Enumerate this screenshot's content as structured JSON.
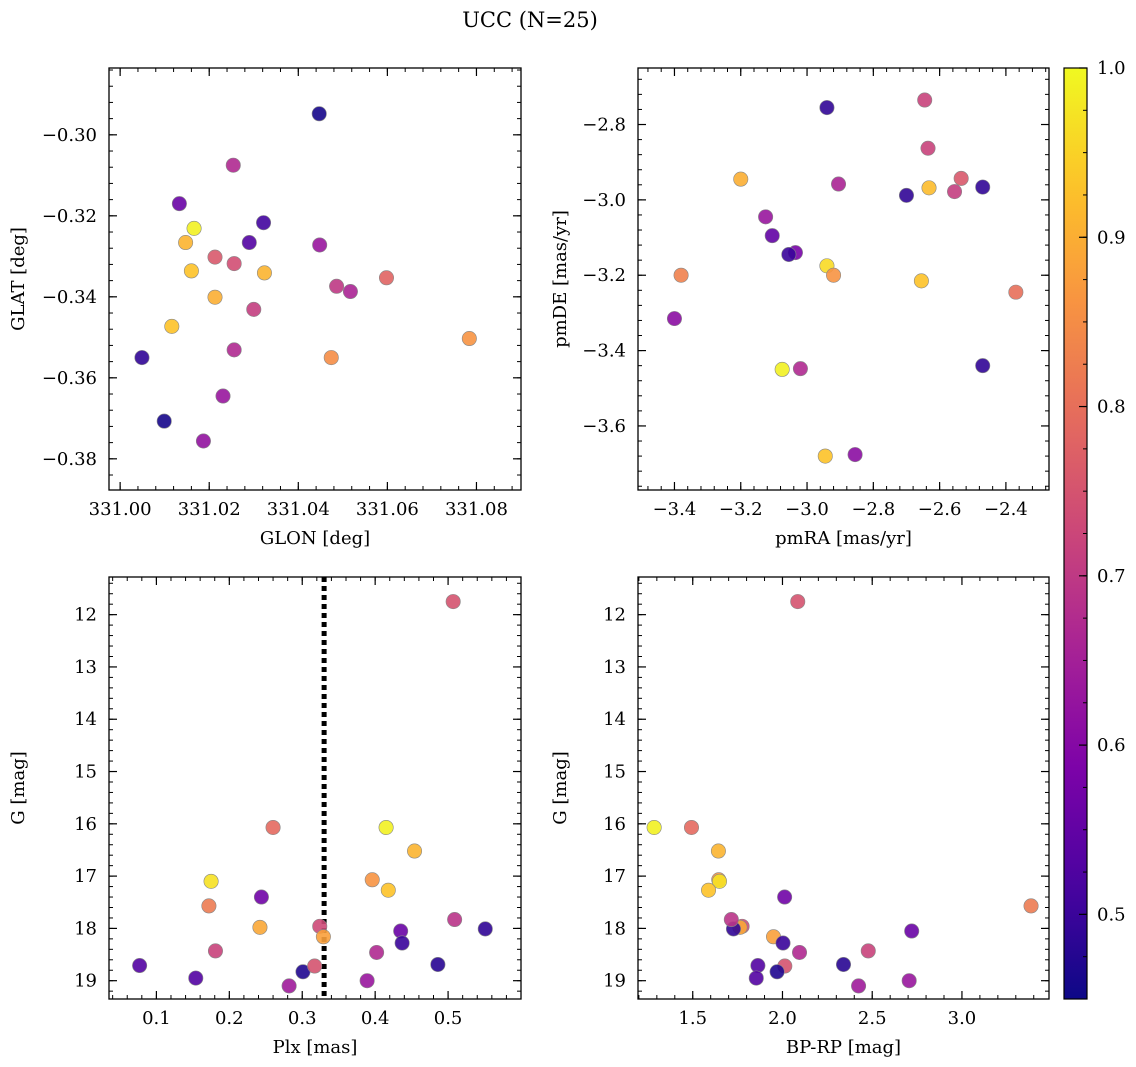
{
  "figure": {
    "suptitle": "UCC (N=25)"
  },
  "colorbar": {
    "min": 0.45,
    "max": 1.0,
    "ticks": [
      0.5,
      0.6,
      0.7,
      0.8,
      0.9,
      1.0
    ],
    "tick_labels": [
      "0.5",
      "0.6",
      "0.7",
      "0.8",
      "0.9",
      "1.0"
    ],
    "colormap": "plasma"
  },
  "chart_data": [
    {
      "type": "scatter",
      "id": "glon-glat",
      "xlabel": "GLON [deg]",
      "ylabel": "GLAT [deg]",
      "xlim": [
        330.9975,
        331.09
      ],
      "ylim": [
        -0.3877,
        -0.2835
      ],
      "xticks": [
        331.0,
        331.02,
        331.04,
        331.06,
        331.08
      ],
      "xtick_labels": [
        "331.00",
        "331.02",
        "331.04",
        "331.06",
        "331.08"
      ],
      "yticks": [
        -0.3,
        -0.32,
        -0.34,
        -0.36,
        -0.38
      ],
      "ytick_labels": [
        "−0.30",
        "−0.32",
        "−0.34",
        "−0.36",
        "−0.38"
      ],
      "x": [
        331.0447,
        331.0254,
        331.0133,
        331.0166,
        331.0322,
        331.0147,
        331.029,
        331.0448,
        331.0213,
        331.0256,
        331.016,
        331.0324,
        331.0213,
        331.0486,
        331.0598,
        331.0517,
        331.03,
        331.0116,
        331.0784,
        331.0049,
        331.0256,
        331.0474,
        331.0231,
        331.0099,
        331.0187
      ],
      "y": [
        -0.2948,
        -0.3075,
        -0.317,
        -0.3231,
        -0.3217,
        -0.3266,
        -0.3266,
        -0.3272,
        -0.3302,
        -0.3318,
        -0.3336,
        -0.3341,
        -0.3401,
        -0.3374,
        -0.3353,
        -0.3387,
        -0.3431,
        -0.3473,
        -0.3503,
        -0.355,
        -0.3531,
        -0.355,
        -0.3645,
        -0.3707,
        -0.3756
      ],
      "c": [
        0.46,
        0.67,
        0.56,
        0.99,
        0.51,
        0.91,
        0.53,
        0.63,
        0.76,
        0.74,
        0.93,
        0.91,
        0.9,
        0.7,
        0.78,
        0.66,
        0.71,
        0.93,
        0.86,
        0.49,
        0.67,
        0.85,
        0.63,
        0.46,
        0.62
      ]
    },
    {
      "type": "scatter",
      "id": "pm",
      "xlabel": "pmRA [mas/yr]",
      "ylabel": "pmDE [mas/yr]",
      "xlim": [
        -3.51,
        -2.27
      ],
      "ylim": [
        -3.77,
        -2.65
      ],
      "xticks": [
        -3.4,
        -3.2,
        -3.0,
        -2.8,
        -2.6,
        -2.4
      ],
      "xtick_labels": [
        "−3.4",
        "−3.2",
        "−3.0",
        "−2.8",
        "−2.6",
        "−2.4"
      ],
      "yticks": [
        -2.8,
        -3.0,
        -3.2,
        -3.4,
        -3.6
      ],
      "ytick_labels": [
        "−2.8",
        "−3.0",
        "−3.2",
        "−3.4",
        "−3.6"
      ],
      "x": [
        -2.94,
        -2.645,
        -2.635,
        -3.2,
        -2.905,
        -2.535,
        -2.632,
        -2.555,
        -2.47,
        -2.7,
        -3.125,
        -3.105,
        -3.035,
        -3.055,
        -2.94,
        -3.38,
        -2.92,
        -2.655,
        -2.37,
        -3.4,
        -3.075,
        -3.02,
        -2.47,
        -2.945,
        -2.855
      ],
      "y": [
        -2.755,
        -2.735,
        -2.863,
        -2.945,
        -2.958,
        -2.943,
        -2.968,
        -2.978,
        -2.966,
        -2.988,
        -3.045,
        -3.095,
        -3.14,
        -3.145,
        -3.175,
        -3.2,
        -3.2,
        -3.215,
        -3.245,
        -3.315,
        -3.45,
        -3.448,
        -3.44,
        -3.68,
        -3.676
      ],
      "c": [
        0.49,
        0.72,
        0.72,
        0.9,
        0.66,
        0.76,
        0.92,
        0.71,
        0.49,
        0.49,
        0.63,
        0.55,
        0.58,
        0.5,
        0.96,
        0.83,
        0.86,
        0.93,
        0.8,
        0.61,
        0.99,
        0.67,
        0.49,
        0.93,
        0.61
      ]
    },
    {
      "type": "scatter",
      "id": "plx-g",
      "xlabel": "Plx [mas]",
      "ylabel": "G [mag]",
      "xlim": [
        0.035,
        0.6
      ],
      "ylim": [
        19.35,
        11.28
      ],
      "y_inverted": true,
      "reference_line": {
        "x": 0.33,
        "style": "dotted",
        "color": "#000000"
      },
      "xticks": [
        0.1,
        0.2,
        0.3,
        0.4,
        0.5
      ],
      "xtick_labels": [
        "0.1",
        "0.2",
        "0.3",
        "0.4",
        "0.5"
      ],
      "yticks": [
        12,
        13,
        14,
        15,
        16,
        17,
        18,
        19
      ],
      "ytick_labels": [
        "12",
        "13",
        "14",
        "15",
        "16",
        "17",
        "18",
        "19"
      ],
      "x": [
        0.507,
        0.26,
        0.415,
        0.454,
        0.175,
        0.396,
        0.418,
        0.244,
        0.172,
        0.242,
        0.324,
        0.329,
        0.435,
        0.509,
        0.551,
        0.181,
        0.402,
        0.437,
        0.077,
        0.154,
        0.301,
        0.317,
        0.486,
        0.389,
        0.282
      ],
      "y": [
        11.75,
        16.07,
        16.07,
        16.52,
        17.1,
        17.07,
        17.27,
        17.4,
        17.57,
        17.98,
        17.96,
        18.16,
        18.05,
        17.83,
        18.01,
        18.43,
        18.46,
        18.28,
        18.71,
        18.95,
        18.83,
        18.72,
        18.69,
        19.0,
        19.1
      ],
      "c": [
        0.75,
        0.79,
        0.99,
        0.91,
        0.97,
        0.86,
        0.93,
        0.57,
        0.82,
        0.89,
        0.73,
        0.88,
        0.56,
        0.69,
        0.49,
        0.72,
        0.67,
        0.5,
        0.53,
        0.53,
        0.47,
        0.75,
        0.48,
        0.63,
        0.64
      ]
    },
    {
      "type": "scatter",
      "id": "color-g",
      "xlabel": "BP-RP [mag]",
      "ylabel": "G [mag]",
      "xlim": [
        1.195,
        3.485
      ],
      "ylim": [
        19.35,
        11.28
      ],
      "y_inverted": true,
      "xticks": [
        1.5,
        2.0,
        2.5,
        3.0
      ],
      "xtick_labels": [
        "1.5",
        "2.0",
        "2.5",
        "3.0"
      ],
      "yticks": [
        12,
        13,
        14,
        15,
        16,
        17,
        18,
        19
      ],
      "ytick_labels": [
        "12",
        "13",
        "14",
        "15",
        "16",
        "17",
        "18",
        "19"
      ],
      "x": [
        2.085,
        1.285,
        1.493,
        1.643,
        1.645,
        1.649,
        1.588,
        2.012,
        3.385,
        1.95,
        1.775,
        1.763,
        1.727,
        1.715,
        2.003,
        2.095,
        2.478,
        2.72,
        1.863,
        2.013,
        2.34,
        1.854,
        1.97,
        2.706,
        2.424
      ],
      "y": [
        11.75,
        16.07,
        16.07,
        16.52,
        17.07,
        17.1,
        17.27,
        17.4,
        17.57,
        18.16,
        17.96,
        17.98,
        18.01,
        17.83,
        18.28,
        18.46,
        18.43,
        18.05,
        18.71,
        18.72,
        18.69,
        18.95,
        18.83,
        19.0,
        19.1
      ],
      "c": [
        0.75,
        0.99,
        0.79,
        0.91,
        0.86,
        0.97,
        0.93,
        0.57,
        0.82,
        0.88,
        0.73,
        0.89,
        0.49,
        0.69,
        0.5,
        0.67,
        0.72,
        0.56,
        0.53,
        0.75,
        0.48,
        0.53,
        0.47,
        0.63,
        0.64
      ]
    }
  ]
}
